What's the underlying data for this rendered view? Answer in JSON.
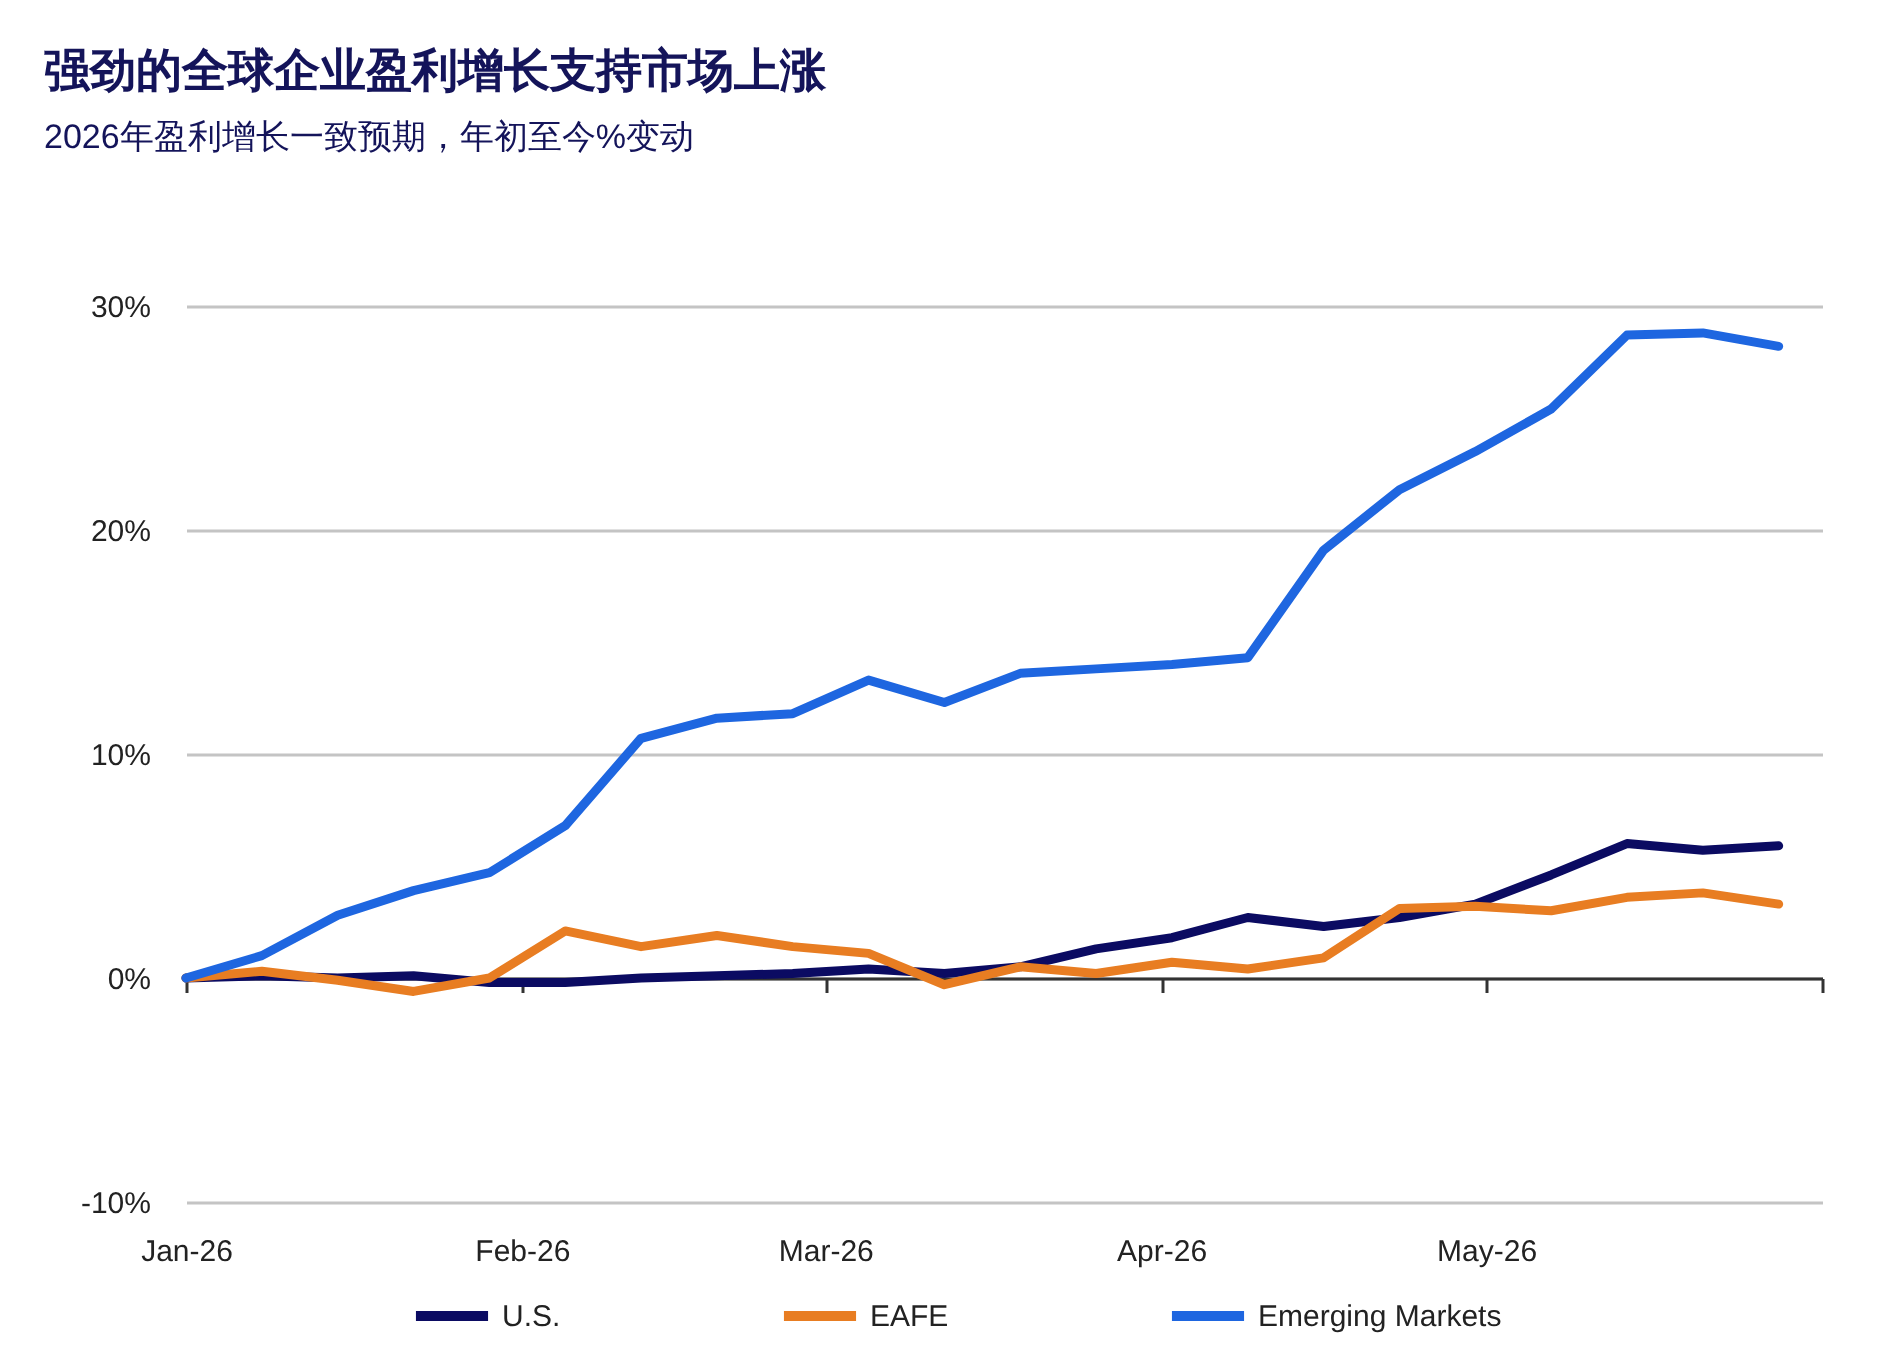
{
  "chart_data": {
    "type": "line",
    "title": "强劲的全球企业盈利增长支持市场上涨",
    "subtitle": "2026年盈利增长一致预期，年初至今%变动",
    "x": [
      "2026-01-01",
      "2026-01-08",
      "2026-01-15",
      "2026-01-22",
      "2026-01-29",
      "2026-02-05",
      "2026-02-12",
      "2026-02-19",
      "2026-02-26",
      "2026-03-05",
      "2026-03-12",
      "2026-03-19",
      "2026-03-26",
      "2026-04-02",
      "2026-04-09",
      "2026-04-16",
      "2026-04-23",
      "2026-04-30",
      "2026-05-07",
      "2026-05-14",
      "2026-05-21",
      "2026-05-28"
    ],
    "series": [
      {
        "name": "U.S.",
        "color": "#0b0b62",
        "values": [
          0,
          0.1,
          0,
          0.1,
          -0.2,
          -0.2,
          0,
          0.1,
          0.2,
          0.4,
          0.2,
          0.5,
          1.3,
          1.8,
          2.7,
          2.3,
          2.7,
          3.3,
          4.6,
          6.0,
          5.7,
          5.9
        ]
      },
      {
        "name": "EAFE",
        "color": "#e87d22",
        "values": [
          0,
          0.3,
          -0.1,
          -0.6,
          0,
          2.1,
          1.4,
          1.9,
          1.4,
          1.1,
          -0.3,
          0.5,
          0.2,
          0.7,
          0.4,
          0.9,
          3.1,
          3.2,
          3.0,
          3.6,
          3.8,
          3.3
        ]
      },
      {
        "name": "Emerging Markets",
        "color": "#1e66e0",
        "values": [
          0,
          1.0,
          2.8,
          3.9,
          4.7,
          6.8,
          10.7,
          11.6,
          11.8,
          13.3,
          12.3,
          13.6,
          13.8,
          14.0,
          14.3,
          19.1,
          21.8,
          23.5,
          25.4,
          28.7,
          28.8,
          28.2
        ]
      }
    ],
    "xlim": [
      "2026-01-01",
      "2026-06-01"
    ],
    "xticks": [
      {
        "value": "2026-01-01",
        "label": "Jan-26"
      },
      {
        "value": "2026-02-01",
        "label": "Feb-26"
      },
      {
        "value": "2026-03-01",
        "label": "Mar-26"
      },
      {
        "value": "2026-04-01",
        "label": "Apr-26"
      },
      {
        "value": "2026-05-01",
        "label": "May-26"
      },
      {
        "value": "2026-06-01",
        "label": null
      }
    ],
    "ylim": [
      -10,
      30
    ],
    "yticks": [
      {
        "value": -10,
        "label": "-10%"
      },
      {
        "value": 0,
        "label": "0%"
      },
      {
        "value": 10,
        "label": "10%"
      },
      {
        "value": 20,
        "label": "20%"
      },
      {
        "value": 30,
        "label": "30%"
      }
    ],
    "grid": "y",
    "legend": "bottom",
    "marker": "none",
    "line_style": "solid"
  }
}
